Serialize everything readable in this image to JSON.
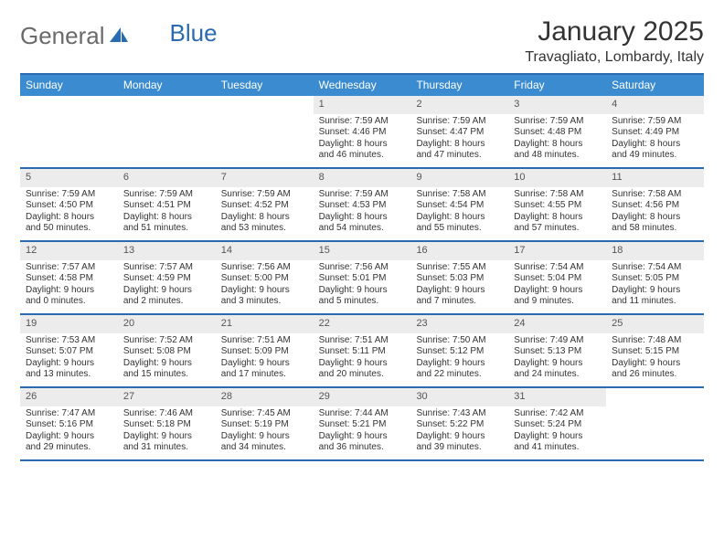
{
  "logo": {
    "text_a": "General",
    "text_b": "Blue"
  },
  "title": "January 2025",
  "location": "Travagliato, Lombardy, Italy",
  "colors": {
    "header_bar": "#3a8bd0",
    "rule": "#2a6bb0",
    "daynum_bg": "#ececec",
    "text": "#333333",
    "logo_gray": "#6a6a6a",
    "logo_blue": "#2a6bb0",
    "background": "#ffffff"
  },
  "typography": {
    "title_fontsize": 30,
    "location_fontsize": 16,
    "dow_fontsize": 12,
    "daynum_fontsize": 11,
    "body_fontsize": 10,
    "logo_fontsize": 26
  },
  "days_of_week": [
    "Sunday",
    "Monday",
    "Tuesday",
    "Wednesday",
    "Thursday",
    "Friday",
    "Saturday"
  ],
  "weeks": [
    [
      {
        "n": "",
        "sr": "",
        "ss": "",
        "dl1": "",
        "dl2": ""
      },
      {
        "n": "",
        "sr": "",
        "ss": "",
        "dl1": "",
        "dl2": ""
      },
      {
        "n": "",
        "sr": "",
        "ss": "",
        "dl1": "",
        "dl2": ""
      },
      {
        "n": "1",
        "sr": "Sunrise: 7:59 AM",
        "ss": "Sunset: 4:46 PM",
        "dl1": "Daylight: 8 hours",
        "dl2": "and 46 minutes."
      },
      {
        "n": "2",
        "sr": "Sunrise: 7:59 AM",
        "ss": "Sunset: 4:47 PM",
        "dl1": "Daylight: 8 hours",
        "dl2": "and 47 minutes."
      },
      {
        "n": "3",
        "sr": "Sunrise: 7:59 AM",
        "ss": "Sunset: 4:48 PM",
        "dl1": "Daylight: 8 hours",
        "dl2": "and 48 minutes."
      },
      {
        "n": "4",
        "sr": "Sunrise: 7:59 AM",
        "ss": "Sunset: 4:49 PM",
        "dl1": "Daylight: 8 hours",
        "dl2": "and 49 minutes."
      }
    ],
    [
      {
        "n": "5",
        "sr": "Sunrise: 7:59 AM",
        "ss": "Sunset: 4:50 PM",
        "dl1": "Daylight: 8 hours",
        "dl2": "and 50 minutes."
      },
      {
        "n": "6",
        "sr": "Sunrise: 7:59 AM",
        "ss": "Sunset: 4:51 PM",
        "dl1": "Daylight: 8 hours",
        "dl2": "and 51 minutes."
      },
      {
        "n": "7",
        "sr": "Sunrise: 7:59 AM",
        "ss": "Sunset: 4:52 PM",
        "dl1": "Daylight: 8 hours",
        "dl2": "and 53 minutes."
      },
      {
        "n": "8",
        "sr": "Sunrise: 7:59 AM",
        "ss": "Sunset: 4:53 PM",
        "dl1": "Daylight: 8 hours",
        "dl2": "and 54 minutes."
      },
      {
        "n": "9",
        "sr": "Sunrise: 7:58 AM",
        "ss": "Sunset: 4:54 PM",
        "dl1": "Daylight: 8 hours",
        "dl2": "and 55 minutes."
      },
      {
        "n": "10",
        "sr": "Sunrise: 7:58 AM",
        "ss": "Sunset: 4:55 PM",
        "dl1": "Daylight: 8 hours",
        "dl2": "and 57 minutes."
      },
      {
        "n": "11",
        "sr": "Sunrise: 7:58 AM",
        "ss": "Sunset: 4:56 PM",
        "dl1": "Daylight: 8 hours",
        "dl2": "and 58 minutes."
      }
    ],
    [
      {
        "n": "12",
        "sr": "Sunrise: 7:57 AM",
        "ss": "Sunset: 4:58 PM",
        "dl1": "Daylight: 9 hours",
        "dl2": "and 0 minutes."
      },
      {
        "n": "13",
        "sr": "Sunrise: 7:57 AM",
        "ss": "Sunset: 4:59 PM",
        "dl1": "Daylight: 9 hours",
        "dl2": "and 2 minutes."
      },
      {
        "n": "14",
        "sr": "Sunrise: 7:56 AM",
        "ss": "Sunset: 5:00 PM",
        "dl1": "Daylight: 9 hours",
        "dl2": "and 3 minutes."
      },
      {
        "n": "15",
        "sr": "Sunrise: 7:56 AM",
        "ss": "Sunset: 5:01 PM",
        "dl1": "Daylight: 9 hours",
        "dl2": "and 5 minutes."
      },
      {
        "n": "16",
        "sr": "Sunrise: 7:55 AM",
        "ss": "Sunset: 5:03 PM",
        "dl1": "Daylight: 9 hours",
        "dl2": "and 7 minutes."
      },
      {
        "n": "17",
        "sr": "Sunrise: 7:54 AM",
        "ss": "Sunset: 5:04 PM",
        "dl1": "Daylight: 9 hours",
        "dl2": "and 9 minutes."
      },
      {
        "n": "18",
        "sr": "Sunrise: 7:54 AM",
        "ss": "Sunset: 5:05 PM",
        "dl1": "Daylight: 9 hours",
        "dl2": "and 11 minutes."
      }
    ],
    [
      {
        "n": "19",
        "sr": "Sunrise: 7:53 AM",
        "ss": "Sunset: 5:07 PM",
        "dl1": "Daylight: 9 hours",
        "dl2": "and 13 minutes."
      },
      {
        "n": "20",
        "sr": "Sunrise: 7:52 AM",
        "ss": "Sunset: 5:08 PM",
        "dl1": "Daylight: 9 hours",
        "dl2": "and 15 minutes."
      },
      {
        "n": "21",
        "sr": "Sunrise: 7:51 AM",
        "ss": "Sunset: 5:09 PM",
        "dl1": "Daylight: 9 hours",
        "dl2": "and 17 minutes."
      },
      {
        "n": "22",
        "sr": "Sunrise: 7:51 AM",
        "ss": "Sunset: 5:11 PM",
        "dl1": "Daylight: 9 hours",
        "dl2": "and 20 minutes."
      },
      {
        "n": "23",
        "sr": "Sunrise: 7:50 AM",
        "ss": "Sunset: 5:12 PM",
        "dl1": "Daylight: 9 hours",
        "dl2": "and 22 minutes."
      },
      {
        "n": "24",
        "sr": "Sunrise: 7:49 AM",
        "ss": "Sunset: 5:13 PM",
        "dl1": "Daylight: 9 hours",
        "dl2": "and 24 minutes."
      },
      {
        "n": "25",
        "sr": "Sunrise: 7:48 AM",
        "ss": "Sunset: 5:15 PM",
        "dl1": "Daylight: 9 hours",
        "dl2": "and 26 minutes."
      }
    ],
    [
      {
        "n": "26",
        "sr": "Sunrise: 7:47 AM",
        "ss": "Sunset: 5:16 PM",
        "dl1": "Daylight: 9 hours",
        "dl2": "and 29 minutes."
      },
      {
        "n": "27",
        "sr": "Sunrise: 7:46 AM",
        "ss": "Sunset: 5:18 PM",
        "dl1": "Daylight: 9 hours",
        "dl2": "and 31 minutes."
      },
      {
        "n": "28",
        "sr": "Sunrise: 7:45 AM",
        "ss": "Sunset: 5:19 PM",
        "dl1": "Daylight: 9 hours",
        "dl2": "and 34 minutes."
      },
      {
        "n": "29",
        "sr": "Sunrise: 7:44 AM",
        "ss": "Sunset: 5:21 PM",
        "dl1": "Daylight: 9 hours",
        "dl2": "and 36 minutes."
      },
      {
        "n": "30",
        "sr": "Sunrise: 7:43 AM",
        "ss": "Sunset: 5:22 PM",
        "dl1": "Daylight: 9 hours",
        "dl2": "and 39 minutes."
      },
      {
        "n": "31",
        "sr": "Sunrise: 7:42 AM",
        "ss": "Sunset: 5:24 PM",
        "dl1": "Daylight: 9 hours",
        "dl2": "and 41 minutes."
      },
      {
        "n": "",
        "sr": "",
        "ss": "",
        "dl1": "",
        "dl2": ""
      }
    ]
  ]
}
